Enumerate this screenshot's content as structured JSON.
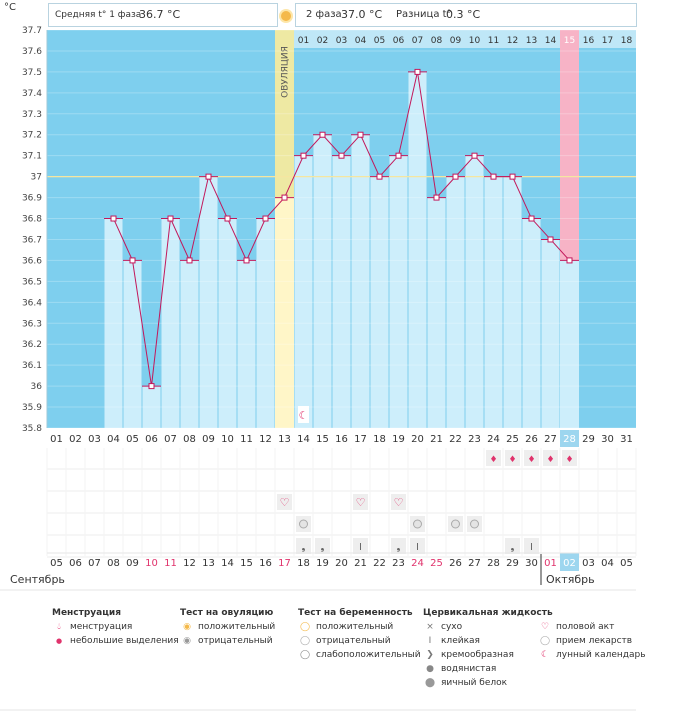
{
  "chart_data": {
    "type": "line",
    "y_unit": "°C",
    "ylim": [
      35.8,
      37.7
    ],
    "y_ticks": [
      "37.7",
      "37.6",
      "37.5",
      "37.4",
      "37.3",
      "37.2",
      "37.1",
      "37",
      "36.9",
      "36.8",
      "36.7",
      "36.6",
      "36.5",
      "36.4",
      "36.3",
      "36.2",
      "36.1",
      "36",
      "35.9",
      "35.8"
    ],
    "cycle_days": [
      "01",
      "02",
      "03",
      "04",
      "05",
      "06",
      "07",
      "08",
      "09",
      "10",
      "11",
      "12",
      "13",
      "14",
      "15",
      "16",
      "17",
      "18",
      "19",
      "20",
      "21",
      "22",
      "23",
      "24",
      "25",
      "26",
      "27",
      "28",
      "29",
      "30",
      "31"
    ],
    "phase2_days": [
      "01",
      "02",
      "03",
      "04",
      "05",
      "06",
      "07",
      "08",
      "09",
      "10",
      "11",
      "12",
      "13",
      "14",
      "15",
      "16",
      "17",
      "18"
    ],
    "temperatures": [
      null,
      null,
      null,
      36.8,
      36.6,
      36.0,
      36.8,
      36.6,
      37.0,
      36.8,
      36.6,
      36.8,
      36.9,
      37.1,
      37.2,
      37.1,
      37.2,
      37.0,
      37.1,
      37.5,
      36.9,
      37.0,
      37.1,
      37.0,
      37.0,
      36.8,
      36.7,
      36.6,
      null,
      null,
      null
    ],
    "coverline": 37.0,
    "ovulation_label": "ОВУЛЯЦИЯ",
    "ovulation_day_index": 12,
    "current_day_index": 27,
    "stats": {
      "phase1_label": "Средняя t° 1 фаза",
      "phase1_value": "36.7 °C",
      "phase2_label": "2 фаза",
      "phase2_value": "37.0 °C",
      "diff_label": "Разница t°",
      "diff_value": "0.3 °C"
    },
    "calendar_dates": [
      "05",
      "06",
      "07",
      "08",
      "09",
      "10",
      "11",
      "12",
      "13",
      "14",
      "15",
      "16",
      "17",
      "18",
      "19",
      "20",
      "21",
      "22",
      "23",
      "24",
      "25",
      "26",
      "27",
      "28",
      "29",
      "30",
      "01",
      "02",
      "03",
      "04",
      "05"
    ],
    "calendar_red_indices": [
      5,
      6,
      12,
      19,
      20
    ],
    "month_left": "Сентябрь",
    "month_right": "Октябрь",
    "month_right_start_index": 26,
    "markers": {
      "menstruation": [
        23,
        24,
        25,
        26,
        27
      ],
      "menstruation_small": [
        25
      ],
      "sex": [
        12,
        16,
        18
      ],
      "pills": [
        13,
        19,
        21,
        22
      ],
      "cervical_creamy": [
        13,
        14,
        18,
        24
      ],
      "cervical_sticky": [
        16,
        19,
        25
      ],
      "moon": [
        13
      ]
    }
  },
  "legend": {
    "menstruation": {
      "title": "Менструация",
      "items": [
        "менструация",
        "небольшие выделения"
      ]
    },
    "ovulation_test": {
      "title": "Тест на овуляцию",
      "items": [
        "положительный",
        "отрицательный"
      ]
    },
    "pregnancy_test": {
      "title": "Тест на беременность",
      "items": [
        "положительный",
        "отрицательный",
        "слабоположительный"
      ]
    },
    "cervical": {
      "title": "Цервикальная жидкость",
      "items": [
        "сухо",
        "клейкая",
        "кремообразная",
        "водянистая",
        "яичный белок"
      ]
    },
    "other": {
      "items": [
        "половой акт",
        "прием лекарств",
        "лунный календарь"
      ]
    }
  },
  "colors": {
    "bg_blue": "#7ecfee",
    "bar_fill": "#cdeefb",
    "ovulation": "#fbeb9a",
    "current": "#f7b3c6",
    "line": "#c2185b",
    "coverline": "#f5e6a0"
  }
}
